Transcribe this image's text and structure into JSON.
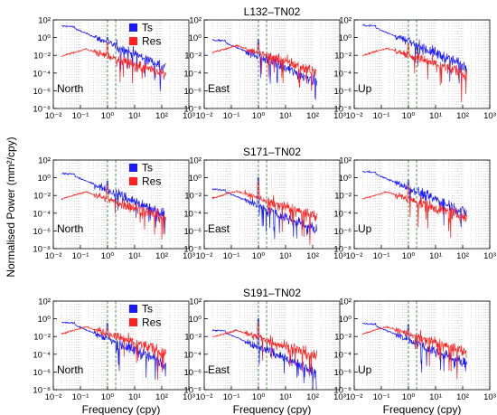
{
  "figure": {
    "ylabel": "Normalised Power (mm²/cpy)",
    "xlabel": "Frequency (cpy)"
  },
  "chart_data": {
    "type": "line",
    "x_scale": "log",
    "y_scale": "log",
    "xlim": [
      0.01,
      1000
    ],
    "ylim": [
      1e-08,
      100
    ],
    "xticks": [
      "10⁻²",
      "10⁻¹",
      "10⁰",
      "10¹",
      "10²",
      "10³"
    ],
    "yticks": [
      "10⁻⁸",
      "10⁻⁶",
      "10⁻⁴",
      "10⁻²",
      "10⁰",
      "10²"
    ],
    "grid": "vertical dotted minor lines",
    "reference_lines": [
      1,
      2
    ],
    "series_styles": [
      {
        "name": "Ts",
        "color": "#1a1aff"
      },
      {
        "name": "Res",
        "color": "#ff2020"
      }
    ],
    "legend_placement": "top-right of first panel in each row",
    "stations": [
      {
        "title": "L132–TN02",
        "panels": [
          {
            "component": "North",
            "ts_start": 20,
            "res_start": 0.008,
            "annual_peak": 1.0
          },
          {
            "component": "East",
            "ts_start": 0.5,
            "res_start": 0.02,
            "annual_peak": 0.6
          },
          {
            "component": "Up",
            "ts_start": 25,
            "res_start": 0.01,
            "annual_peak": 0.8
          }
        ]
      },
      {
        "title": "S171–TN02",
        "panels": [
          {
            "component": "North",
            "ts_start": 3,
            "res_start": 0.004,
            "annual_peak": 0.4
          },
          {
            "component": "East",
            "ts_start": 0.05,
            "res_start": 0.005,
            "annual_peak": 1.0
          },
          {
            "component": "Up",
            "ts_start": 5,
            "res_start": 0.004,
            "annual_peak": 0.5
          }
        ]
      },
      {
        "title": "S191–TN02",
        "panels": [
          {
            "component": "North",
            "ts_start": 0.4,
            "res_start": 0.02,
            "annual_peak": 0.3
          },
          {
            "component": "East",
            "ts_start": 0.05,
            "res_start": 0.008,
            "annual_peak": 1.0
          },
          {
            "component": "Up",
            "ts_start": 0.3,
            "res_start": 0.02,
            "annual_peak": 0.2
          }
        ]
      }
    ]
  }
}
